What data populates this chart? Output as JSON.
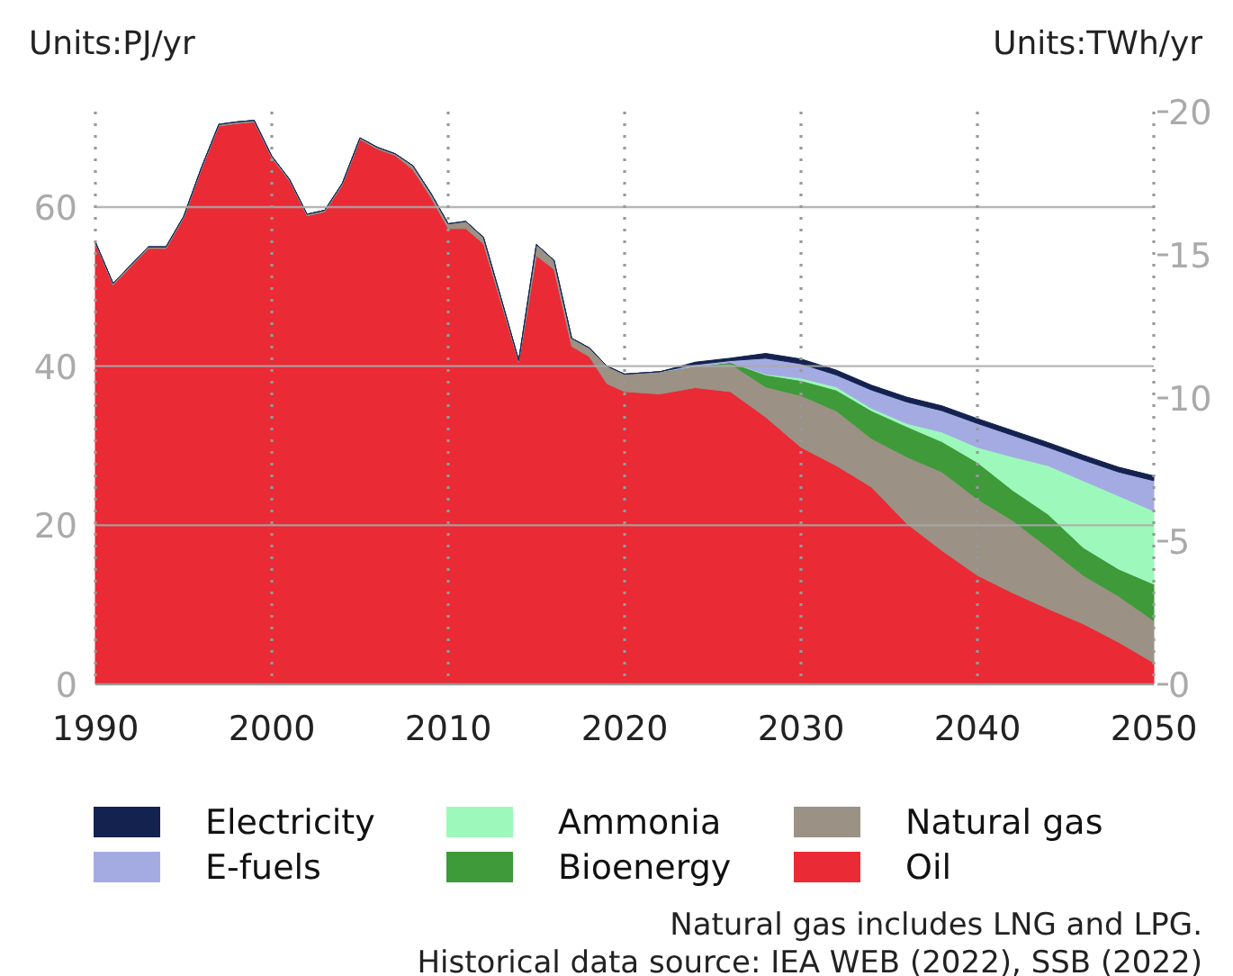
{
  "chart_data": {
    "type": "area",
    "stacked": true,
    "ylabel": "Units:PJ/yr",
    "y2label": "Units:TWh/yr",
    "x": [
      1990,
      1991,
      1992,
      1993,
      1994,
      1995,
      1996,
      1997,
      1998,
      1999,
      2000,
      2001,
      2002,
      2003,
      2004,
      2005,
      2006,
      2007,
      2008,
      2009,
      2010,
      2011,
      2012,
      2013,
      2014,
      2015,
      2016,
      2017,
      2018,
      2019,
      2020,
      2022,
      2024,
      2026,
      2028,
      2030,
      2032,
      2034,
      2036,
      2038,
      2040,
      2042,
      2044,
      2046,
      2048,
      2050
    ],
    "series": [
      {
        "name": "Oil",
        "color": "#ea2a35",
        "values": [
          55.4,
          50.2,
          52.5,
          54.8,
          54.8,
          58.6,
          64.7,
          70.2,
          70.5,
          70.7,
          66.2,
          63.3,
          58.9,
          59.4,
          62.8,
          68.5,
          67.3,
          66.5,
          64.7,
          61.3,
          57.3,
          57.3,
          55.4,
          48.0,
          40.5,
          53.9,
          52.2,
          42.5,
          41.2,
          37.8,
          36.8,
          36.5,
          37.3,
          36.8,
          33.6,
          29.8,
          27.5,
          24.8,
          20.2,
          16.8,
          13.7,
          11.5,
          9.5,
          7.6,
          5.3,
          2.7
        ]
      },
      {
        "name": "Natural gas",
        "color": "#9b9185",
        "values": [
          0.2,
          0.2,
          0.2,
          0.2,
          0.2,
          0.2,
          0.2,
          0.2,
          0.2,
          0.2,
          0.2,
          0.2,
          0.2,
          0.2,
          0.2,
          0.2,
          0.2,
          0.2,
          0.5,
          0.5,
          0.6,
          0.9,
          0.8,
          0.5,
          0.2,
          1.4,
          1.1,
          1.0,
          1.1,
          2.2,
          2.2,
          2.8,
          2.7,
          3.5,
          3.8,
          6.5,
          6.9,
          6.1,
          8.4,
          9.9,
          9.6,
          9.1,
          7.7,
          6.1,
          5.8,
          5.3
        ]
      },
      {
        "name": "Bioenergy",
        "color": "#3f9a3a",
        "values": [
          0,
          0,
          0,
          0,
          0,
          0,
          0,
          0,
          0,
          0,
          0,
          0,
          0,
          0,
          0,
          0,
          0,
          0,
          0,
          0,
          0,
          0,
          0,
          0,
          0,
          0,
          0,
          0,
          0,
          0,
          0,
          0,
          0,
          0.2,
          1.5,
          1.9,
          2.6,
          3.5,
          3.8,
          3.8,
          4.6,
          3.8,
          4.2,
          3.5,
          3.4,
          4.6
        ]
      },
      {
        "name": "Ammonia",
        "color": "#9cf9bb",
        "values": [
          0,
          0,
          0,
          0,
          0,
          0,
          0,
          0,
          0,
          0,
          0,
          0,
          0,
          0,
          0,
          0,
          0,
          0,
          0,
          0,
          0,
          0,
          0,
          0,
          0,
          0,
          0,
          0,
          0,
          0,
          0,
          0,
          0,
          0,
          0.1,
          0.3,
          0.4,
          0.3,
          0.4,
          1.2,
          1.9,
          4.2,
          6.1,
          8.4,
          9.2,
          9.2
        ]
      },
      {
        "name": "E-fuels",
        "color": "#a4abe3",
        "values": [
          0,
          0,
          0,
          0,
          0,
          0,
          0,
          0,
          0,
          0,
          0,
          0,
          0,
          0,
          0,
          0,
          0,
          0,
          0,
          0,
          0,
          0,
          0,
          0,
          0,
          0,
          0,
          0,
          0,
          0,
          0,
          0,
          0.2,
          0.2,
          2.0,
          1.8,
          1.5,
          2.3,
          2.7,
          2.7,
          3.0,
          2.7,
          2.3,
          2.6,
          3.0,
          3.8
        ]
      },
      {
        "name": "Electricity",
        "color": "#14224f",
        "values": [
          0,
          0,
          0,
          0,
          0,
          0,
          0,
          0,
          0,
          0,
          0,
          0,
          0,
          0,
          0,
          0,
          0,
          0,
          0,
          0,
          0,
          0,
          0,
          0,
          0,
          0,
          0,
          0,
          0,
          0,
          0,
          0,
          0.3,
          0.3,
          0.6,
          0.6,
          0.6,
          0.6,
          0.6,
          0.6,
          0.6,
          0.6,
          0.6,
          0.6,
          0.6,
          0.6
        ]
      }
    ],
    "xlim": [
      1990,
      2050
    ],
    "xticks": [
      1990,
      2000,
      2010,
      2020,
      2030,
      2040,
      2050
    ],
    "ylim": [
      0,
      72
    ],
    "yticks": [
      0,
      20,
      40,
      60
    ],
    "y2lim": [
      0,
      20
    ],
    "y2ticks": [
      0,
      5,
      10,
      15,
      20
    ],
    "grid": true,
    "legend": "bottom",
    "annotations": [
      "Natural gas includes LNG and LPG.",
      "Historical data source: IEA WEB (2022), SSB (2022)"
    ]
  }
}
